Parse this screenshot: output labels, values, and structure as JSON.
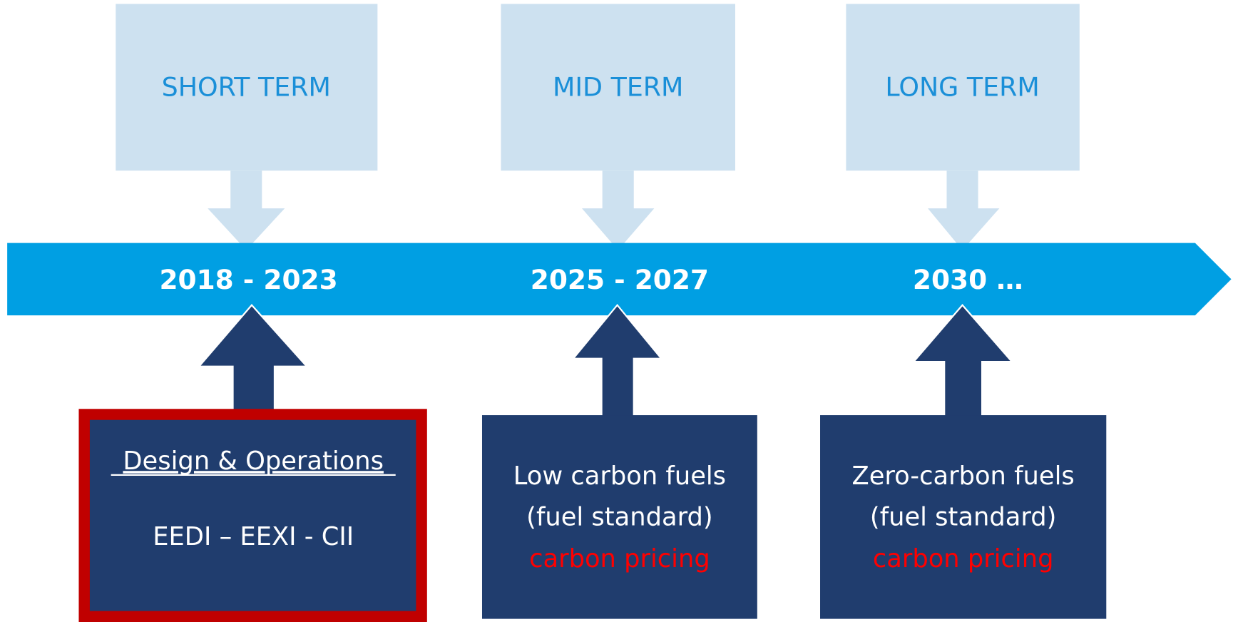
{
  "phases": [
    {
      "term": "SHORT TERM",
      "period": "2018 - 2023",
      "measures": [
        "Design & Operations",
        "EEDI – EEXI - CII"
      ]
    },
    {
      "term": "MID TERM",
      "period": "2025 - 2027",
      "measures": [
        "Low carbon fuels",
        "(fuel standard)",
        "carbon pricing"
      ]
    },
    {
      "term": "LONG TERM",
      "period": "2030 …",
      "measures": [
        "Zero-carbon fuels",
        "(fuel standard)",
        "carbon pricing"
      ]
    }
  ]
}
